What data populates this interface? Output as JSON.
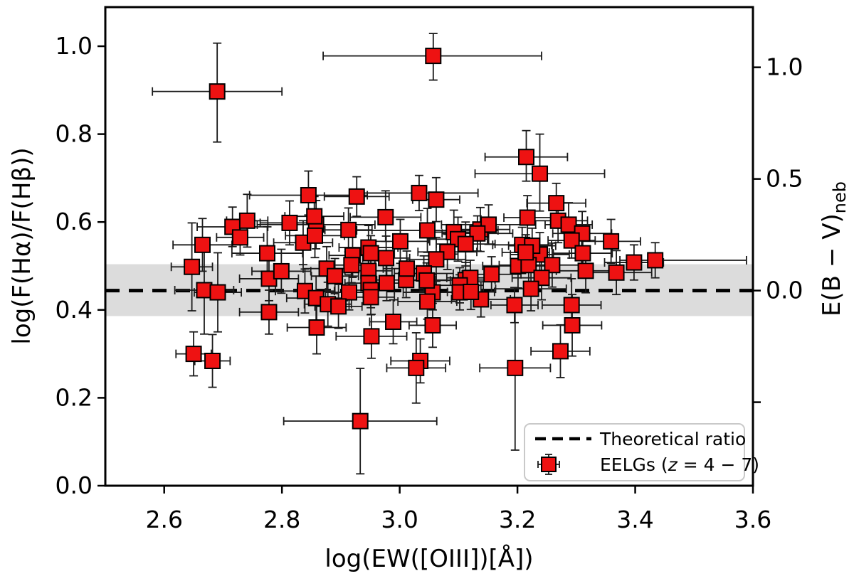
{
  "figure": {
    "background_color": "#ffffff",
    "axis_color": "#000000",
    "xlabel": "log(EW([OIII])[Å])",
    "ylabel_left": "log(F(Hα)/F(Hβ))",
    "ylabel_right_main": "E(B − V)",
    "ylabel_right_sub": "neb",
    "legend": {
      "theoretical_label": "Theoretical ratio",
      "eelgs_prefix": "EELGs (",
      "eelgs_z": "z",
      "eelgs_suffix": " = 4 − 7)"
    }
  },
  "chart_data": {
    "type": "scatter",
    "title": "",
    "xlabel": "log(EW([OIII])[Å])",
    "ylabel_left": "log(F(Hα)/F(Hβ))",
    "ylabel_right": "E(B − V)neb",
    "legend_entries": [
      "Theoretical ratio",
      "EELGs (z = 4 − 7)"
    ],
    "legend_position": "lower right",
    "grid": false,
    "xlim": [
      2.5,
      3.6
    ],
    "ylim": [
      0.0,
      1.089
    ],
    "xticks": {
      "values": [
        2.6,
        2.8,
        3.0,
        3.2,
        3.4,
        3.6
      ],
      "labels": [
        "2.6",
        "2.8",
        "3.0",
        "3.2",
        "3.4",
        "3.6"
      ]
    },
    "yticks_left": {
      "values": [
        0.0,
        0.2,
        0.4,
        0.6,
        0.8,
        1.0
      ],
      "labels": [
        "0.0",
        "0.2",
        "0.4",
        "0.6",
        "0.8",
        "1.0"
      ]
    },
    "yticks_right": {
      "values_in_left_axis_units": [
        0.952,
        0.698,
        0.444,
        0.19
      ],
      "labels": [
        "1.0",
        "0.5",
        "0.0",
        ""
      ],
      "note": "right axis shows E(B−V)neb; 0.0 aligns with theoretical ratio"
    },
    "theoretical_ratio": 0.444,
    "shaded_band": [
      0.386,
      0.504
    ],
    "marker": "square",
    "marker_color": "#ee1212",
    "marker_edge_color": "#000000",
    "errorbar_color": "#1a1a1a",
    "band_color": "#dcdcdc",
    "dashed_line_color": "#000000",
    "points_format": "[x, y, xerr_lo, xerr_hi, yerr_lo, yerr_hi]",
    "points": [
      [
        2.69,
        0.897,
        0.11,
        0.11,
        0.115,
        0.11
      ],
      [
        3.057,
        0.978,
        0.187,
        0.184,
        0.055,
        0.051
      ],
      [
        3.215,
        0.748,
        0.07,
        0.07,
        0.055,
        0.06
      ],
      [
        3.238,
        0.71,
        0.11,
        0.11,
        0.085,
        0.09
      ],
      [
        3.266,
        0.643,
        0.05,
        0.05,
        0.045,
        0.045
      ],
      [
        2.845,
        0.661,
        0.1,
        0.1,
        0.045,
        0.055
      ],
      [
        2.927,
        0.658,
        0.055,
        0.055,
        0.045,
        0.045
      ],
      [
        3.033,
        0.666,
        0.1,
        0.1,
        0.04,
        0.04
      ],
      [
        3.062,
        0.651,
        0.04,
        0.04,
        0.05,
        0.05
      ],
      [
        2.976,
        0.611,
        0.06,
        0.06,
        0.055,
        0.06
      ],
      [
        2.716,
        0.589,
        0.06,
        0.06,
        0.045,
        0.045
      ],
      [
        2.741,
        0.603,
        0.035,
        0.035,
        0.06,
        0.06
      ],
      [
        2.729,
        0.565,
        0.04,
        0.04,
        0.04,
        0.04
      ],
      [
        2.813,
        0.598,
        0.05,
        0.05,
        0.05,
        0.05
      ],
      [
        2.858,
        0.594,
        0.1,
        0.1,
        0.055,
        0.055
      ],
      [
        2.855,
        0.613,
        0.05,
        0.05,
        0.045,
        0.045
      ],
      [
        3.047,
        0.581,
        0.12,
        0.12,
        0.05,
        0.05
      ],
      [
        3.092,
        0.577,
        0.04,
        0.04,
        0.05,
        0.05
      ],
      [
        3.137,
        0.583,
        0.05,
        0.05,
        0.05,
        0.05
      ],
      [
        3.151,
        0.594,
        0.08,
        0.08,
        0.045,
        0.045
      ],
      [
        3.217,
        0.61,
        0.04,
        0.04,
        0.05,
        0.05
      ],
      [
        3.269,
        0.603,
        0.05,
        0.05,
        0.05,
        0.05
      ],
      [
        3.287,
        0.594,
        0.04,
        0.04,
        0.05,
        0.05
      ],
      [
        3.31,
        0.574,
        0.05,
        0.05,
        0.05,
        0.05
      ],
      [
        3.292,
        0.558,
        0.04,
        0.04,
        0.04,
        0.04
      ],
      [
        3.359,
        0.556,
        0.05,
        0.05,
        0.05,
        0.05
      ],
      [
        2.665,
        0.548,
        0.05,
        0.05,
        0.06,
        0.06
      ],
      [
        2.913,
        0.582,
        0.04,
        0.04,
        0.05,
        0.05
      ],
      [
        3.001,
        0.556,
        0.05,
        0.05,
        0.05,
        0.05
      ],
      [
        3.099,
        0.561,
        0.05,
        0.05,
        0.05,
        0.05
      ],
      [
        3.132,
        0.574,
        0.06,
        0.06,
        0.04,
        0.04
      ],
      [
        3.112,
        0.55,
        0.05,
        0.05,
        0.05,
        0.05
      ],
      [
        2.947,
        0.542,
        0.05,
        0.05,
        0.05,
        0.05
      ],
      [
        2.92,
        0.524,
        0.04,
        0.04,
        0.05,
        0.05
      ],
      [
        2.951,
        0.529,
        0.04,
        0.04,
        0.04,
        0.04
      ],
      [
        2.977,
        0.518,
        0.04,
        0.04,
        0.05,
        0.05
      ],
      [
        3.081,
        0.532,
        0.05,
        0.05,
        0.04,
        0.04
      ],
      [
        3.062,
        0.515,
        0.05,
        0.05,
        0.05,
        0.05
      ],
      [
        2.775,
        0.529,
        0.06,
        0.06,
        0.06,
        0.06
      ],
      [
        2.836,
        0.553,
        0.05,
        0.05,
        0.05,
        0.05
      ],
      [
        2.856,
        0.569,
        0.05,
        0.05,
        0.05,
        0.05
      ],
      [
        3.238,
        0.526,
        0.05,
        0.05,
        0.05,
        0.05
      ],
      [
        3.311,
        0.529,
        0.05,
        0.05,
        0.05,
        0.05
      ],
      [
        3.201,
        0.5,
        0.06,
        0.06,
        0.05,
        0.05
      ],
      [
        3.208,
        0.548,
        0.05,
        0.05,
        0.04,
        0.04
      ],
      [
        3.225,
        0.546,
        0.04,
        0.04,
        0.04,
        0.04
      ],
      [
        3.219,
        0.502,
        0.05,
        0.05,
        0.05,
        0.05
      ],
      [
        3.259,
        0.502,
        0.05,
        0.05,
        0.05,
        0.05
      ],
      [
        3.241,
        0.473,
        0.05,
        0.05,
        0.05,
        0.05
      ],
      [
        3.223,
        0.448,
        0.06,
        0.06,
        0.05,
        0.05
      ],
      [
        3.316,
        0.489,
        0.05,
        0.05,
        0.05,
        0.05
      ],
      [
        3.368,
        0.485,
        0.06,
        0.06,
        0.05,
        0.05
      ],
      [
        3.398,
        0.508,
        0.05,
        0.05,
        0.04,
        0.04
      ],
      [
        3.434,
        0.513,
        0.06,
        0.155,
        0.04,
        0.04
      ],
      [
        3.292,
        0.411,
        0.05,
        0.05,
        0.06,
        0.06
      ],
      [
        3.293,
        0.365,
        0.05,
        0.05,
        0.07,
        0.07
      ],
      [
        3.273,
        0.306,
        0.05,
        0.05,
        0.06,
        0.06
      ],
      [
        3.196,
        0.268,
        0.06,
        0.06,
        0.187,
        0.13
      ],
      [
        2.647,
        0.498,
        0.035,
        0.035,
        0.1,
        0.1
      ],
      [
        2.668,
        0.445,
        0.05,
        0.05,
        0.1,
        0.1
      ],
      [
        2.691,
        0.44,
        0.04,
        0.04,
        0.09,
        0.09
      ],
      [
        2.65,
        0.3,
        0.03,
        0.03,
        0.05,
        0.05
      ],
      [
        2.682,
        0.284,
        0.03,
        0.03,
        0.06,
        0.06
      ],
      [
        2.778,
        0.471,
        0.05,
        0.05,
        0.05,
        0.05
      ],
      [
        2.799,
        0.488,
        0.05,
        0.05,
        0.05,
        0.05
      ],
      [
        2.778,
        0.395,
        0.05,
        0.05,
        0.05,
        0.05
      ],
      [
        2.839,
        0.443,
        0.05,
        0.05,
        0.05,
        0.05
      ],
      [
        2.858,
        0.427,
        0.05,
        0.05,
        0.05,
        0.05
      ],
      [
        2.859,
        0.36,
        0.05,
        0.05,
        0.06,
        0.06
      ],
      [
        2.876,
        0.494,
        0.04,
        0.04,
        0.05,
        0.05
      ],
      [
        2.89,
        0.477,
        0.04,
        0.04,
        0.04,
        0.04
      ],
      [
        2.918,
        0.502,
        0.04,
        0.04,
        0.04,
        0.04
      ],
      [
        2.947,
        0.489,
        0.04,
        0.04,
        0.04,
        0.04
      ],
      [
        2.947,
        0.461,
        0.04,
        0.04,
        0.04,
        0.04
      ],
      [
        2.978,
        0.461,
        0.04,
        0.04,
        0.04,
        0.04
      ],
      [
        3.011,
        0.468,
        0.05,
        0.05,
        0.04,
        0.04
      ],
      [
        3.041,
        0.483,
        0.05,
        0.05,
        0.04,
        0.04
      ],
      [
        3.112,
        0.468,
        0.05,
        0.05,
        0.04,
        0.04
      ],
      [
        3.12,
        0.473,
        0.04,
        0.04,
        0.04,
        0.04
      ],
      [
        3.156,
        0.481,
        0.05,
        0.05,
        0.04,
        0.04
      ],
      [
        2.951,
        0.445,
        0.04,
        0.04,
        0.04,
        0.04
      ],
      [
        2.914,
        0.44,
        0.04,
        0.04,
        0.04,
        0.04
      ],
      [
        2.951,
        0.429,
        0.04,
        0.04,
        0.04,
        0.04
      ],
      [
        3.056,
        0.44,
        0.05,
        0.05,
        0.04,
        0.04
      ],
      [
        3.047,
        0.419,
        0.05,
        0.05,
        0.04,
        0.04
      ],
      [
        3.102,
        0.456,
        0.04,
        0.04,
        0.04,
        0.04
      ],
      [
        3.102,
        0.44,
        0.04,
        0.04,
        0.04,
        0.04
      ],
      [
        3.138,
        0.424,
        0.05,
        0.05,
        0.04,
        0.04
      ],
      [
        2.878,
        0.413,
        0.04,
        0.04,
        0.05,
        0.05
      ],
      [
        2.896,
        0.408,
        0.04,
        0.04,
        0.05,
        0.05
      ],
      [
        2.952,
        0.34,
        0.06,
        0.06,
        0.05,
        0.05
      ],
      [
        2.989,
        0.373,
        0.04,
        0.04,
        0.05,
        0.05
      ],
      [
        3.056,
        0.365,
        0.04,
        0.04,
        0.05,
        0.05
      ],
      [
        3.035,
        0.284,
        0.05,
        0.05,
        0.05,
        0.05
      ],
      [
        3.028,
        0.268,
        0.05,
        0.05,
        0.08,
        0.08
      ],
      [
        2.933,
        0.147,
        0.13,
        0.13,
        0.12,
        0.12
      ],
      [
        3.012,
        0.494,
        0.04,
        0.04,
        0.04,
        0.04
      ],
      [
        3.046,
        0.467,
        0.04,
        0.04,
        0.04,
        0.04
      ],
      [
        3.214,
        0.531,
        0.04,
        0.04,
        0.04,
        0.04
      ],
      [
        3.121,
        0.441,
        0.04,
        0.04,
        0.04,
        0.04
      ],
      [
        3.195,
        0.411,
        0.04,
        0.04,
        0.04,
        0.04
      ]
    ]
  }
}
